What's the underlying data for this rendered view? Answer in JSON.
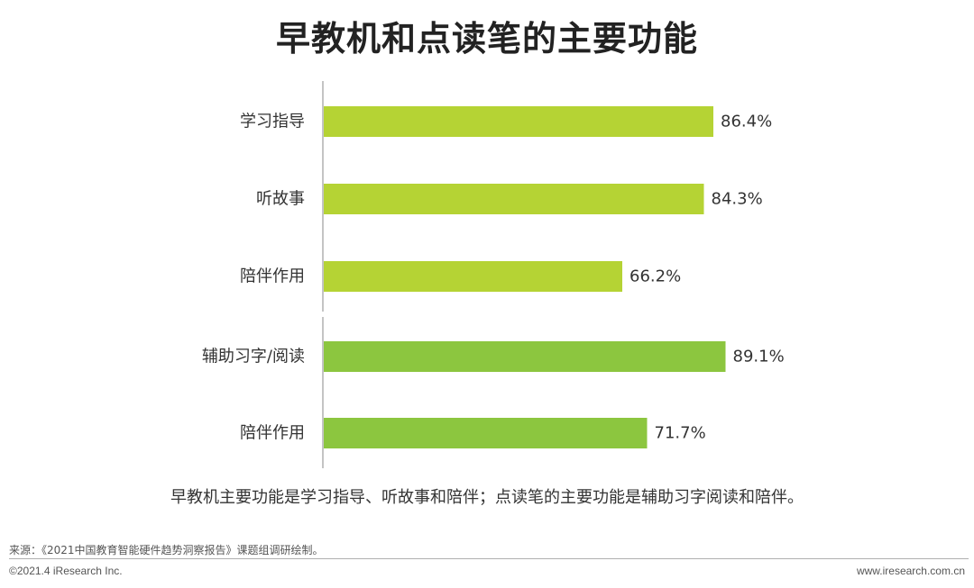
{
  "title": "早教机和点读笔的主要功能",
  "summary": "早教机主要功能是学习指导、听故事和陪伴；点读笔的主要功能是辅助习字阅读和陪伴。",
  "source": "来源：《2021中国教育智能硬件趋势洞察报告》课题组调研绘制。",
  "copyright": "©2021.4 iResearch Inc.",
  "website": "www.iresearch.com.cn",
  "colors": {
    "group1": "#b5d334",
    "group2": "#8cc63f",
    "axis": "#b0b0b0"
  },
  "chart_data": {
    "type": "bar",
    "orientation": "horizontal",
    "title": "早教机和点读笔的主要功能",
    "xlim": [
      0,
      100
    ],
    "grid": false,
    "categories": [
      "学习指导",
      "听故事",
      "陪伴作用",
      "辅助习字/阅读",
      "陪伴作用"
    ],
    "values": [
      86.4,
      84.3,
      66.2,
      89.1,
      71.7
    ],
    "value_labels": [
      "86.4%",
      "84.3%",
      "66.2%",
      "89.1%",
      "71.7%"
    ],
    "bar_groups": [
      "group1",
      "group1",
      "group1",
      "group2",
      "group2"
    ]
  }
}
